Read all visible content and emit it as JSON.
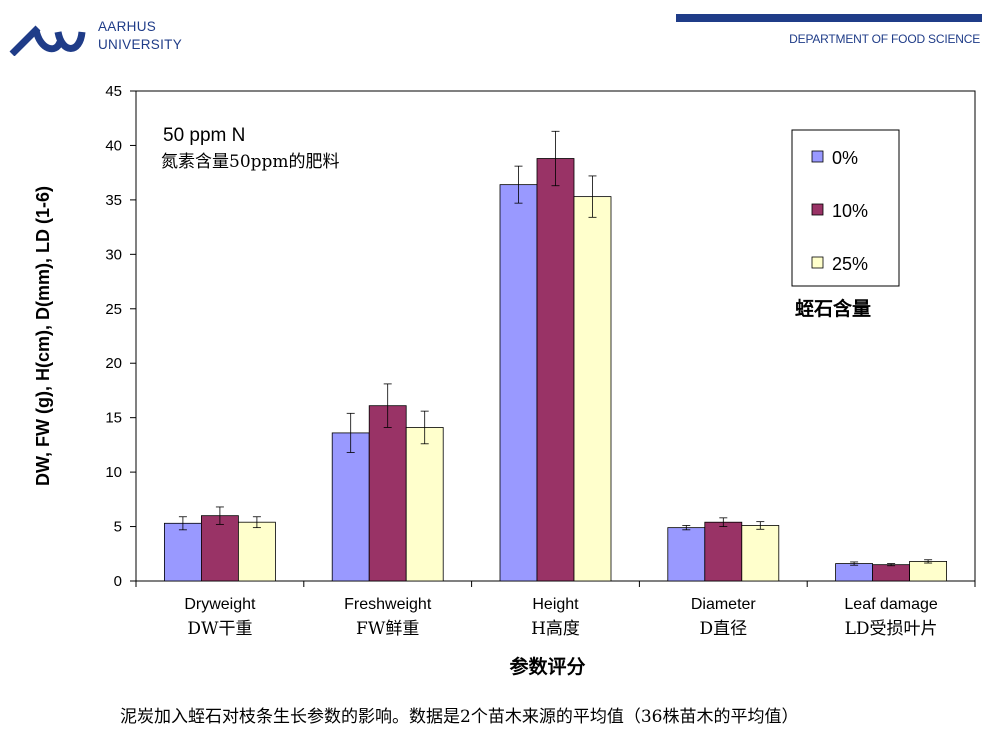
{
  "header": {
    "university_line1": "AARHUS",
    "university_line2": "UNIVERSITY",
    "department": "DEPARTMENT OF FOOD SCIENCE"
  },
  "colors": {
    "brand": "#1f3c88",
    "series": [
      "#9999ff",
      "#993366",
      "#ffffcc"
    ]
  },
  "chart_data": {
    "type": "bar",
    "annotation_line1": "50 ppm N",
    "annotation_line2": "氮素含量50ppm的肥料",
    "ylabel": "DW, FW (g), H(cm), D(mm), LD (1-6)",
    "xlabel": "参数评分",
    "ylim": [
      0,
      45
    ],
    "yticks": [
      0,
      5,
      10,
      15,
      20,
      25,
      30,
      35,
      40,
      45
    ],
    "categories": [
      {
        "en": "Dryweight",
        "zh": "DW干重"
      },
      {
        "en": "Freshweight",
        "zh": "FW鲜重"
      },
      {
        "en": "Height",
        "zh": "H高度"
      },
      {
        "en": "Diameter",
        "zh": "D直径"
      },
      {
        "en": "Leaf damage",
        "zh": "LD受损叶片"
      }
    ],
    "series": [
      {
        "name": "0%",
        "values": [
          5.3,
          13.6,
          36.4,
          4.9,
          1.6
        ],
        "errors": [
          0.6,
          1.8,
          1.7,
          0.2,
          0.15
        ]
      },
      {
        "name": "10%",
        "values": [
          6.0,
          16.1,
          38.8,
          5.4,
          1.5
        ],
        "errors": [
          0.8,
          2.0,
          2.5,
          0.4,
          0.1
        ]
      },
      {
        "name": "25%",
        "values": [
          5.4,
          14.1,
          35.3,
          5.1,
          1.8
        ],
        "errors": [
          0.5,
          1.5,
          1.9,
          0.35,
          0.15
        ]
      }
    ],
    "legend_title": "蛭石含量",
    "legend_position": "top-right",
    "grid": false
  },
  "caption": "泥炭加入蛭石对枝条生长参数的影响。数据是2个苗木来源的平均值（36株苗木的平均值）"
}
